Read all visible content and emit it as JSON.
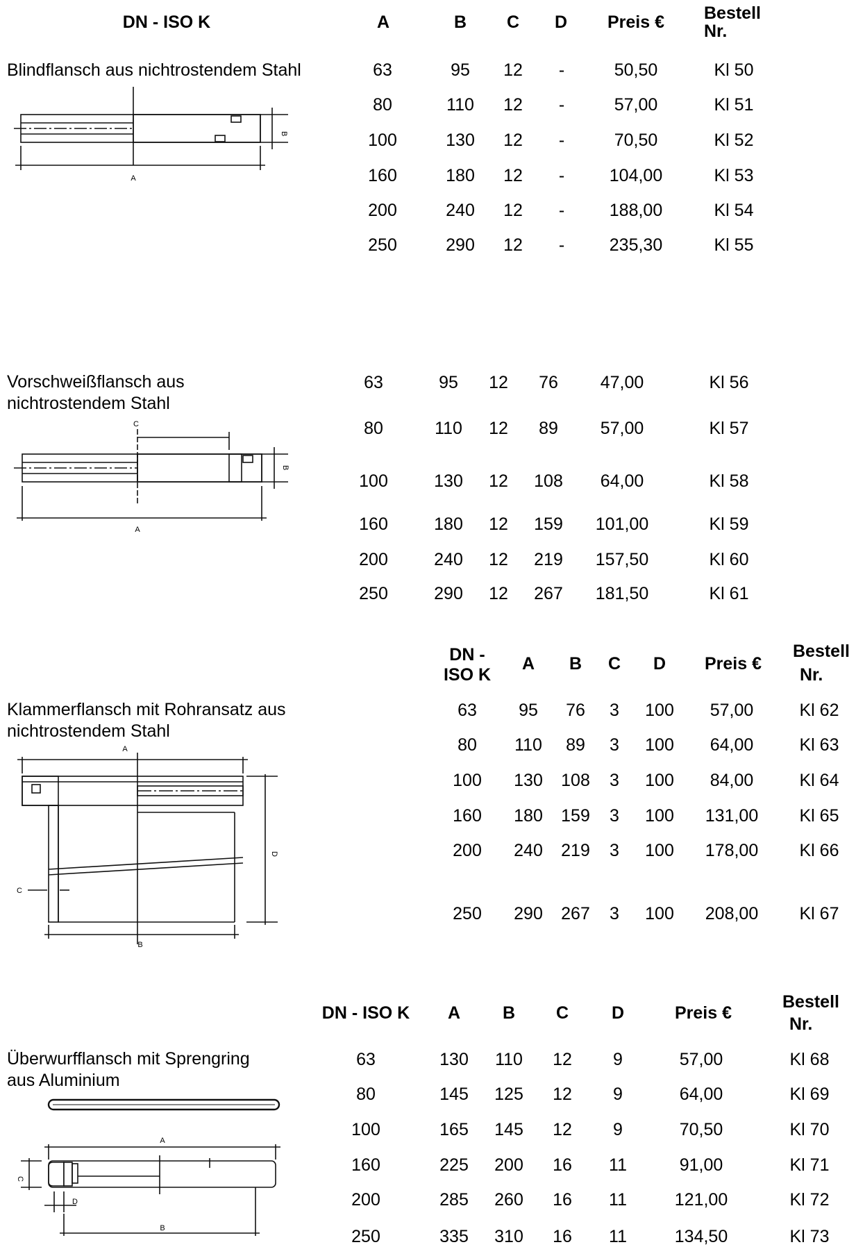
{
  "sections": [
    {
      "description": "Blindflansch aus nichtrostendem Stahl",
      "headers": [
        "DN - ISO K",
        "A",
        "B",
        "C",
        "D",
        "Preis €",
        "Bestell Nr."
      ],
      "rows": [
        [
          "63",
          "95",
          "12",
          "-",
          "50,50",
          "Kl 50"
        ],
        [
          "80",
          "110",
          "12",
          "-",
          "57,00",
          "Kl 51"
        ],
        [
          "100",
          "130",
          "12",
          "-",
          "70,50",
          "Kl 52"
        ],
        [
          "160",
          "180",
          "12",
          "-",
          "104,00",
          "Kl 53"
        ],
        [
          "200",
          "240",
          "12",
          "-",
          "188,00",
          "Kl 54"
        ],
        [
          "250",
          "290",
          "12",
          "-",
          "235,30",
          "Kl 55"
        ]
      ],
      "drawing_labels": [
        "A",
        "B"
      ]
    },
    {
      "description_lines": [
        "Vorschweißflansch aus",
        "nichtrostendem Stahl"
      ],
      "rows": [
        [
          "63",
          "95",
          "12",
          "76",
          "47,00",
          "Kl 56"
        ],
        [
          "80",
          "110",
          "12",
          "89",
          "57,00",
          "Kl 57"
        ],
        [
          "100",
          "130",
          "12",
          "108",
          "64,00",
          "Kl 58"
        ],
        [
          "160",
          "180",
          "12",
          "159",
          "101,00",
          "Kl 59"
        ],
        [
          "200",
          "240",
          "12",
          "219",
          "157,50",
          "Kl 60"
        ],
        [
          "250",
          "290",
          "12",
          "267",
          "181,50",
          "Kl 61"
        ]
      ],
      "drawing_labels": [
        "C",
        "B",
        "A"
      ]
    },
    {
      "description_lines": [
        "Klammerflansch mit Rohransatz aus",
        "nichtrostendem Stahl"
      ],
      "headers": [
        "DN -",
        "ISO K",
        "A",
        "B",
        "C",
        "D",
        "Preis €",
        "Bestell",
        "Nr."
      ],
      "rows": [
        [
          "63",
          "95",
          "76",
          "3",
          "100",
          "57,00",
          "Kl 62"
        ],
        [
          "80",
          "110",
          "89",
          "3",
          "100",
          "64,00",
          "Kl 63"
        ],
        [
          "100",
          "130",
          "108",
          "3",
          "100",
          "84,00",
          "Kl 64"
        ],
        [
          "160",
          "180",
          "159",
          "3",
          "100",
          "131,00",
          "Kl 65"
        ],
        [
          "200",
          "240",
          "219",
          "3",
          "100",
          "178,00",
          "Kl 66"
        ],
        [
          "250",
          "290",
          "267",
          "3",
          "100",
          "208,00",
          "Kl 67"
        ]
      ],
      "drawing_labels": [
        "A",
        "D",
        "C",
        "B"
      ]
    },
    {
      "description_lines": [
        "Überwurfflansch mit Sprengring",
        "aus Aluminium"
      ],
      "headers": [
        "DN - ISO K",
        "A",
        "B",
        "C",
        "D",
        "Preis €",
        "Bestell",
        "Nr."
      ],
      "rows": [
        [
          "63",
          "130",
          "110",
          "12",
          "9",
          "57,00",
          "Kl 68"
        ],
        [
          "80",
          "145",
          "125",
          "12",
          "9",
          "64,00",
          "Kl 69"
        ],
        [
          "100",
          "165",
          "145",
          "12",
          "9",
          "70,50",
          "Kl 70"
        ],
        [
          "160",
          "225",
          "200",
          "16",
          "11",
          "91,00",
          "Kl 71"
        ],
        [
          "200",
          "285",
          "260",
          "16",
          "11",
          "121,00",
          "Kl 72"
        ],
        [
          "250",
          "335",
          "310",
          "16",
          "11",
          "134,50",
          "Kl 73"
        ]
      ],
      "drawing_labels": [
        "A",
        "C",
        "D",
        "B"
      ]
    }
  ]
}
